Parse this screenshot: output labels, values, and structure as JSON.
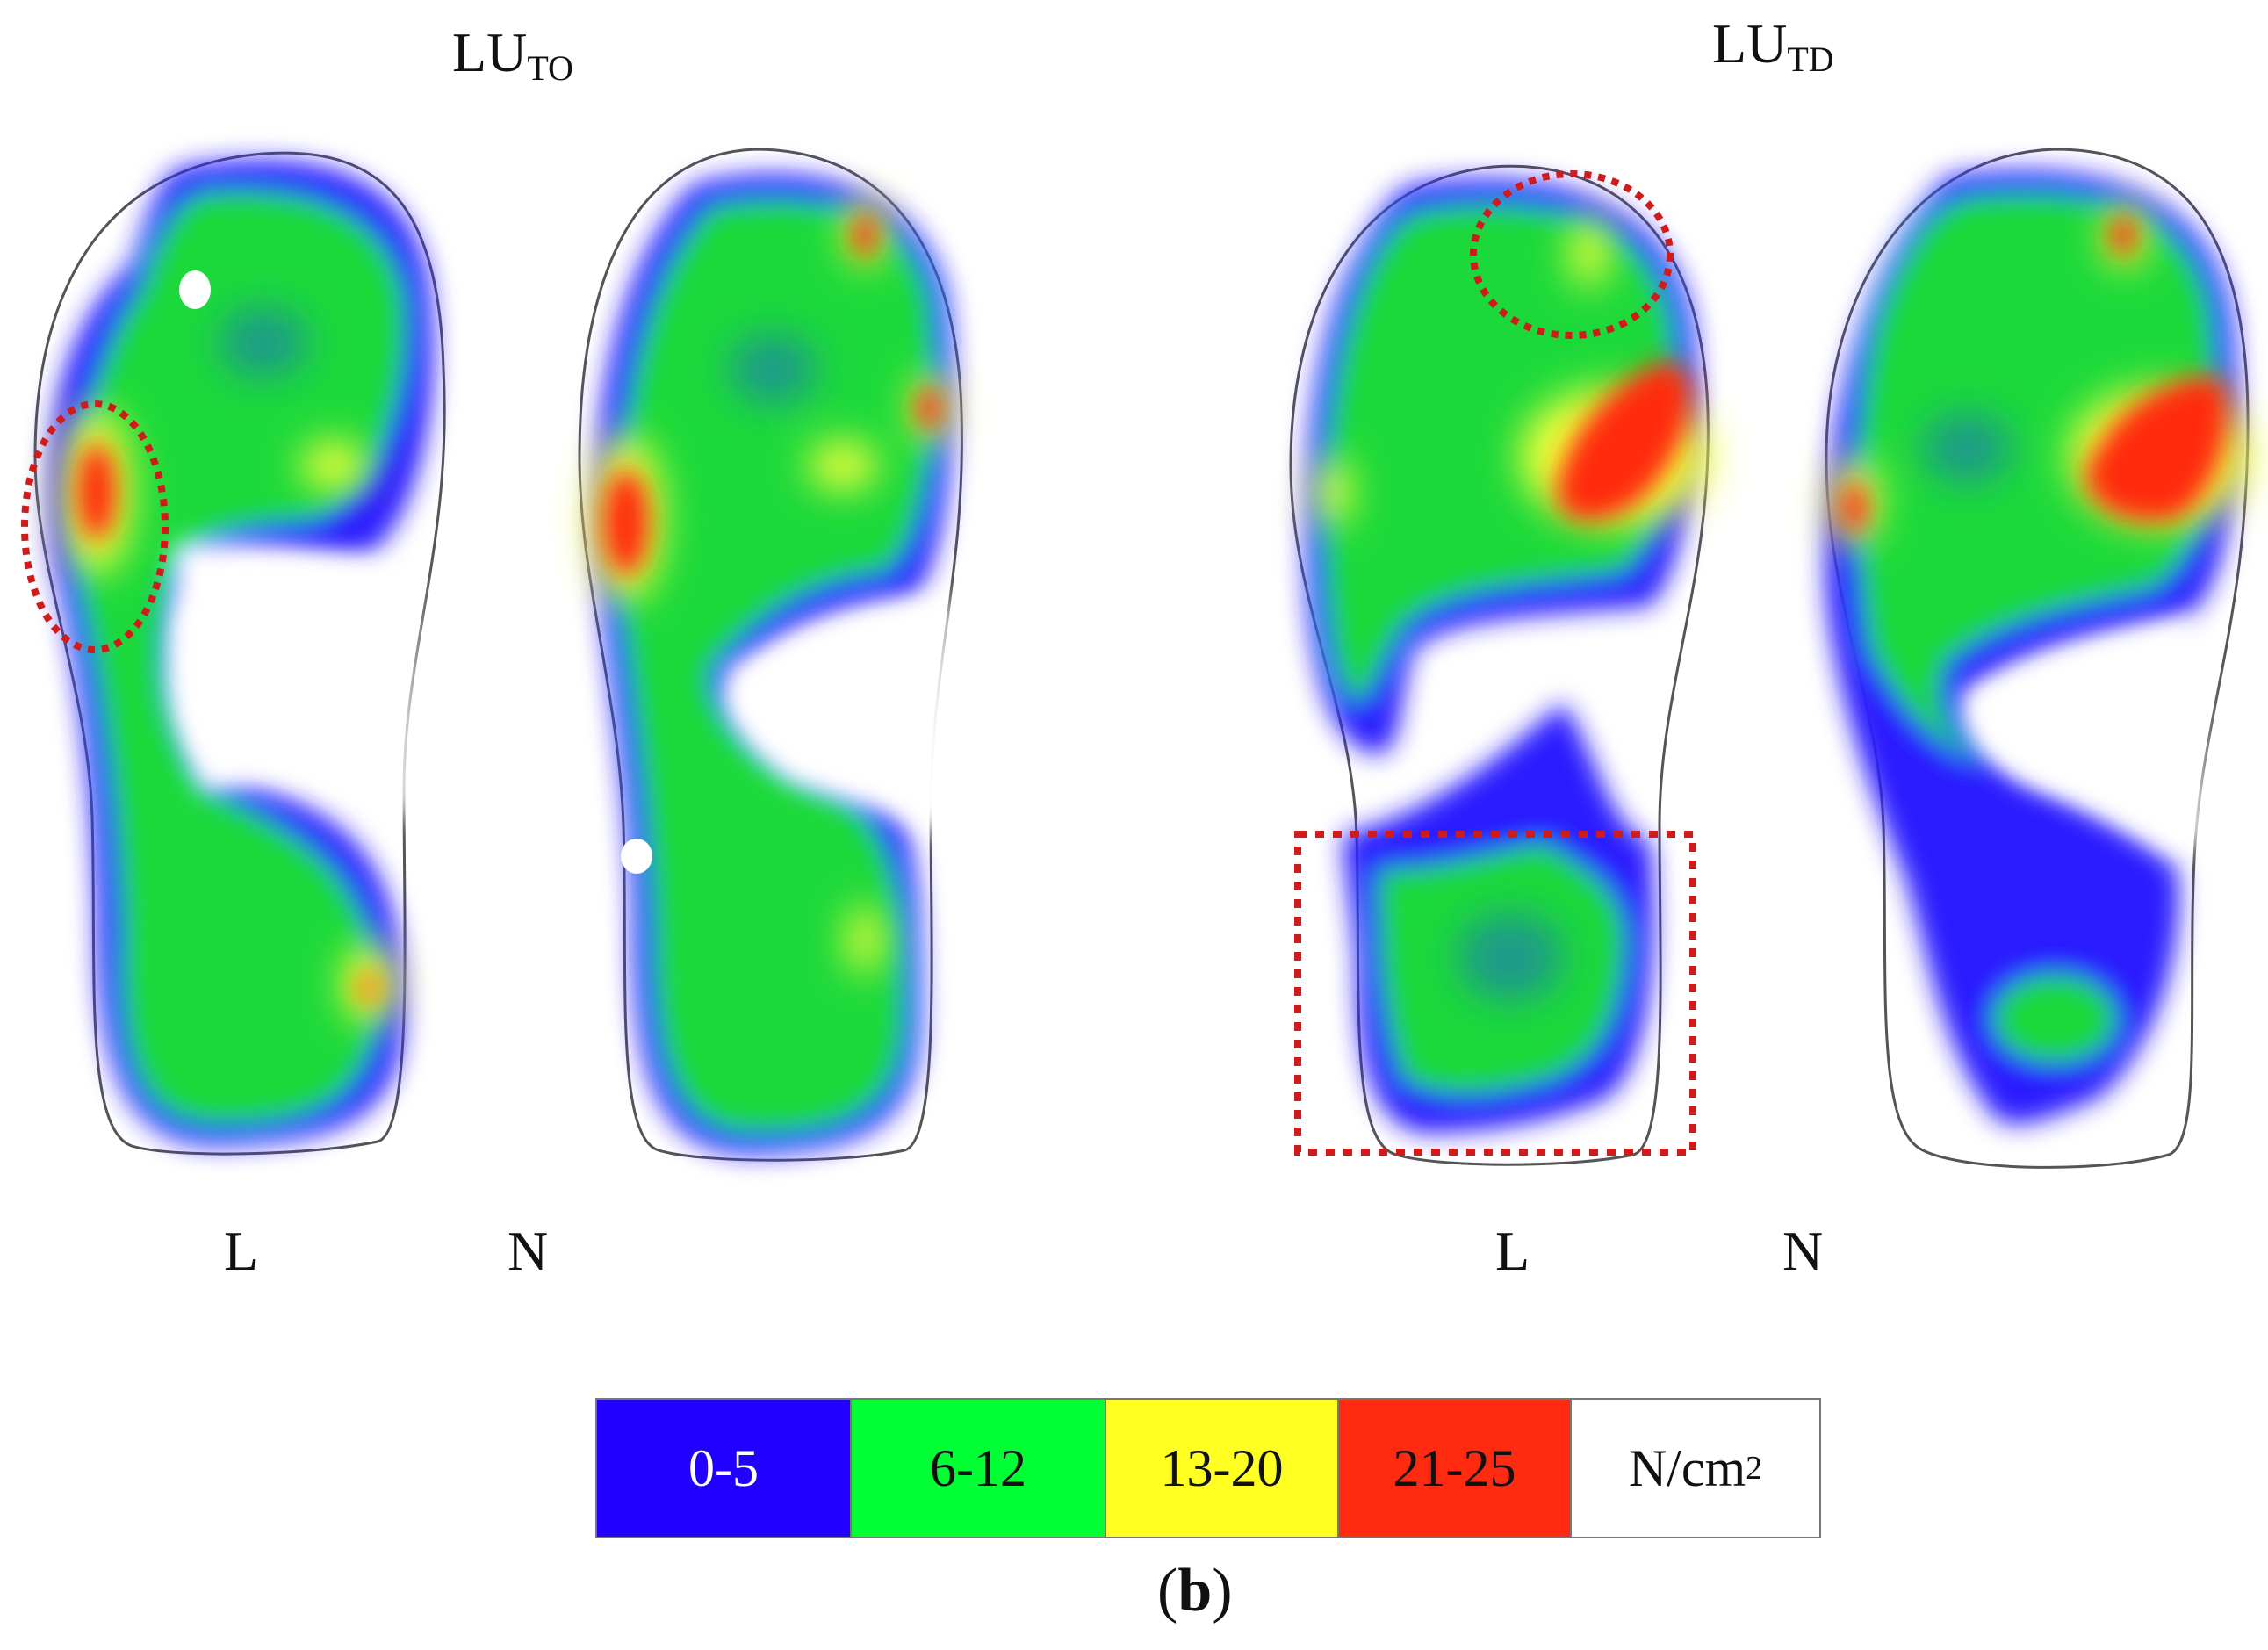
{
  "titles": {
    "left": {
      "main": "LU",
      "sub": "TO"
    },
    "right": {
      "main": "LU",
      "sub": "TD"
    }
  },
  "foot_labels": {
    "left_pair": [
      "L",
      "N"
    ],
    "right_pair": [
      "L",
      "N"
    ]
  },
  "legend": {
    "bins": [
      {
        "label": "0-5",
        "color": "#2200ff"
      },
      {
        "label": "6-12",
        "color": "#00ff33"
      },
      {
        "label": "13-20",
        "color": "#ffff22"
      },
      {
        "label": "21-25",
        "color": "#ff2a10"
      }
    ],
    "unit": {
      "main": "N/cm",
      "exp": "2"
    }
  },
  "caption": {
    "open": "(",
    "letter": "b",
    "close": ")"
  },
  "colors": {
    "blue": "#2a1bff",
    "green": "#1fd93a",
    "yellow": "#f2ff3a",
    "red": "#ff2a10",
    "outline": "#555555",
    "highlight": "#d11a1a"
  }
}
